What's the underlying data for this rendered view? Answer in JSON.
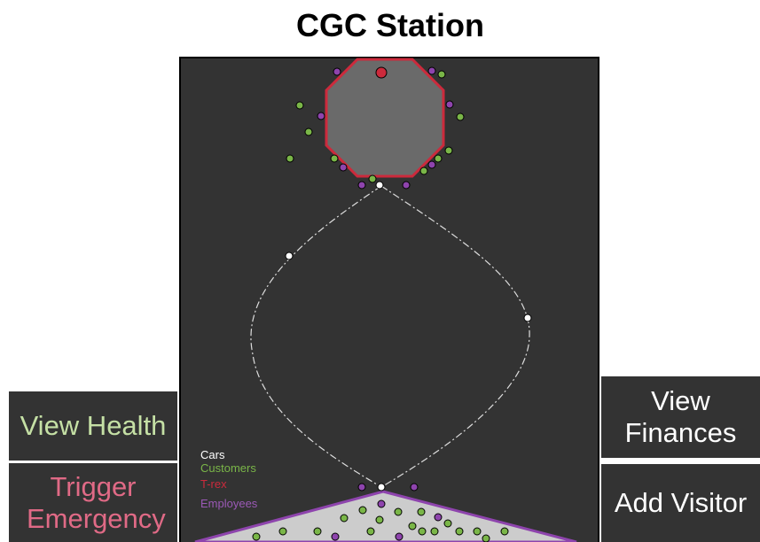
{
  "header": {
    "title": "CGC Station"
  },
  "left_buttons": [
    "View Health",
    "Trigger Emergency"
  ],
  "right_buttons": [
    "View Finances",
    "Add Visitor"
  ],
  "legend": [
    "Cars",
    "Customers",
    "T-rex",
    "Employees"
  ]
}
